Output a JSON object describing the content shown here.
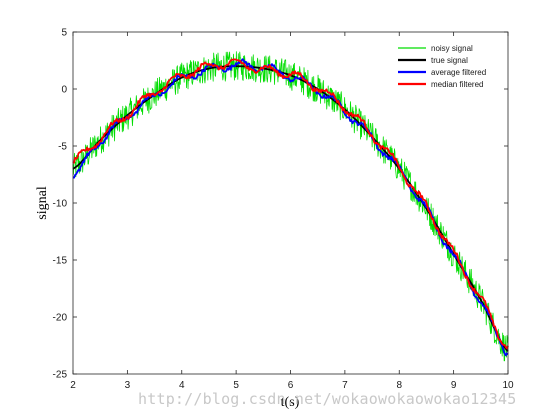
{
  "chart_data": {
    "type": "line",
    "title": "",
    "xlabel": "t(s)",
    "ylabel": "signal",
    "xlim": [
      2,
      10
    ],
    "ylim": [
      -25,
      5
    ],
    "xticks": [
      2,
      3,
      4,
      5,
      6,
      7,
      8,
      9,
      10
    ],
    "yticks": [
      5,
      0,
      -5,
      -10,
      -15,
      -20,
      -25
    ],
    "grid": false,
    "legend_position": "top-right",
    "x": [
      2.0,
      2.5,
      3.0,
      3.5,
      4.0,
      4.5,
      5.0,
      5.5,
      6.0,
      6.5,
      7.0,
      7.5,
      8.0,
      8.5,
      9.0,
      9.5,
      10.0
    ],
    "series": [
      {
        "name": "noisy signal",
        "color": "#00dd00",
        "values": [
          -7.0,
          -4.5,
          -2.3,
          -0.5,
          1.0,
          1.8,
          2.0,
          1.8,
          1.2,
          0.0,
          -1.8,
          -4.2,
          -7.0,
          -10.5,
          -14.5,
          -18.5,
          -23.0
        ],
        "noise_amplitude": 1.3
      },
      {
        "name": "true signal",
        "color": "#000000",
        "values": [
          -7.0,
          -4.5,
          -2.3,
          -0.5,
          1.0,
          1.8,
          2.0,
          1.8,
          1.2,
          0.0,
          -1.8,
          -4.2,
          -7.0,
          -10.5,
          -14.5,
          -18.5,
          -23.0
        ]
      },
      {
        "name": "average filtered",
        "color": "#0000ff",
        "values": [
          -7.6,
          -4.6,
          -2.4,
          -0.6,
          0.9,
          1.7,
          2.1,
          1.9,
          1.1,
          -0.1,
          -1.9,
          -4.3,
          -7.1,
          -10.6,
          -14.6,
          -18.6,
          -23.1
        ]
      },
      {
        "name": "median filtered",
        "color": "#ff0000",
        "values": [
          -6.4,
          -4.3,
          -2.2,
          -0.3,
          1.1,
          2.0,
          2.2,
          1.7,
          1.3,
          0.1,
          -1.6,
          -4.0,
          -6.9,
          -10.4,
          -14.4,
          -18.4,
          -22.6
        ]
      }
    ]
  },
  "watermark": "http://blog.csdn.net/wokaowokaowokao12345"
}
